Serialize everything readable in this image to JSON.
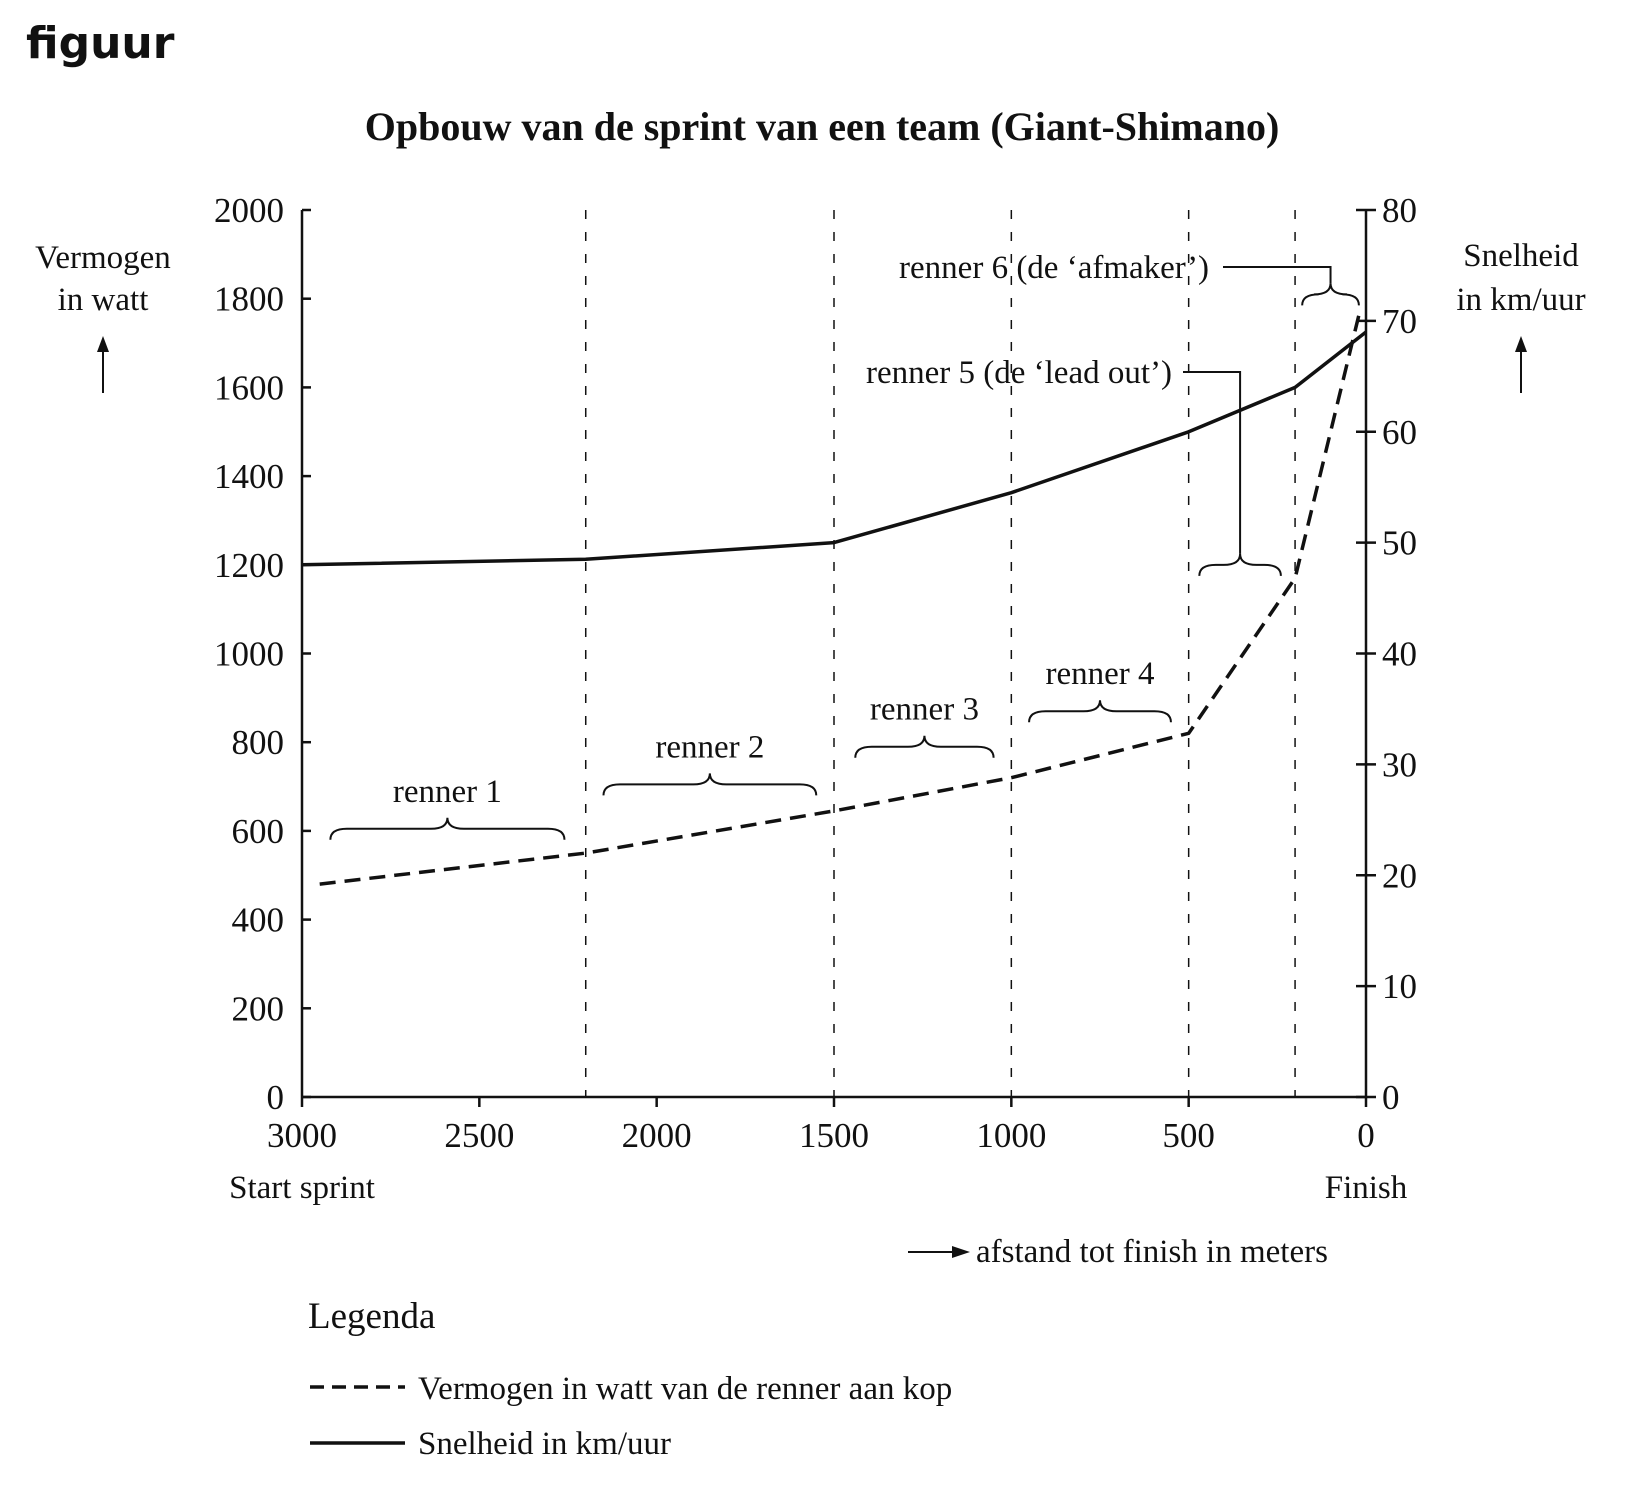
{
  "figure_label": "figuur",
  "chart_data": {
    "type": "line",
    "title": "Opbouw van de sprint van een team (Giant-Shimano)",
    "x": [
      3000,
      2200,
      1500,
      1000,
      500,
      200,
      0
    ],
    "xlim": [
      3000,
      0
    ],
    "xticks": [
      "3000",
      "2500",
      "2000",
      "1500",
      "1000",
      "500",
      "0"
    ],
    "xtick_values": [
      3000,
      2500,
      2000,
      1500,
      1000,
      500,
      0
    ],
    "x_start_label": "Start sprint",
    "x_end_label": "Finish",
    "xlabel": "afstand tot finish in meters",
    "ylabel_left_line1": "Vermogen",
    "ylabel_left_line2": "in watt",
    "ylim_left": [
      0,
      2000
    ],
    "yticks_left": [
      "0",
      "200",
      "400",
      "600",
      "800",
      "1000",
      "1200",
      "1400",
      "1600",
      "1800",
      "2000"
    ],
    "ylabel_right_line1": "Snelheid",
    "ylabel_right_line2": "in km/uur",
    "ylim_right": [
      0,
      80
    ],
    "yticks_right": [
      "0",
      "10",
      "20",
      "30",
      "40",
      "50",
      "60",
      "70",
      "80"
    ],
    "segment_boundaries": [
      2200,
      1500,
      1000,
      500,
      200
    ],
    "series": [
      {
        "name": "Vermogen in watt van de renner aan kop",
        "axis": "left",
        "style": "dashed",
        "x": [
          2950,
          2200,
          1500,
          1000,
          500,
          200,
          15
        ],
        "values": [
          480,
          550,
          645,
          720,
          820,
          1170,
          1780
        ]
      },
      {
        "name": "Snelheid in km/uur",
        "axis": "right",
        "style": "solid",
        "x": [
          3000,
          2200,
          1500,
          1000,
          500,
          200,
          0
        ],
        "values": [
          48,
          48.5,
          50,
          54.5,
          60,
          64,
          69
        ]
      }
    ],
    "riders": [
      {
        "label": "renner 1",
        "x_from": 2920,
        "x_to": 2260,
        "level": 580
      },
      {
        "label": "renner 2",
        "x_from": 2150,
        "x_to": 1550,
        "level": 680
      },
      {
        "label": "renner 3",
        "x_from": 1440,
        "x_to": 1050,
        "level": 765
      },
      {
        "label": "renner 4",
        "x_from": 950,
        "x_to": 550,
        "level": 845
      },
      {
        "label": "renner 5 (de ‘lead out’)",
        "x_from": 470,
        "x_to": 240,
        "level": 1175
      },
      {
        "label": "renner 6 (de ‘afmaker’)",
        "x_from": 180,
        "x_to": 20,
        "level": 1785
      }
    ],
    "legend_title": "Legenda",
    "legend": [
      {
        "label": "Vermogen in watt van de renner aan kop",
        "style": "dashed"
      },
      {
        "label": "Snelheid in km/uur",
        "style": "solid"
      }
    ]
  },
  "colors": {
    "ink": "#111111",
    "background": "#ffffff"
  }
}
